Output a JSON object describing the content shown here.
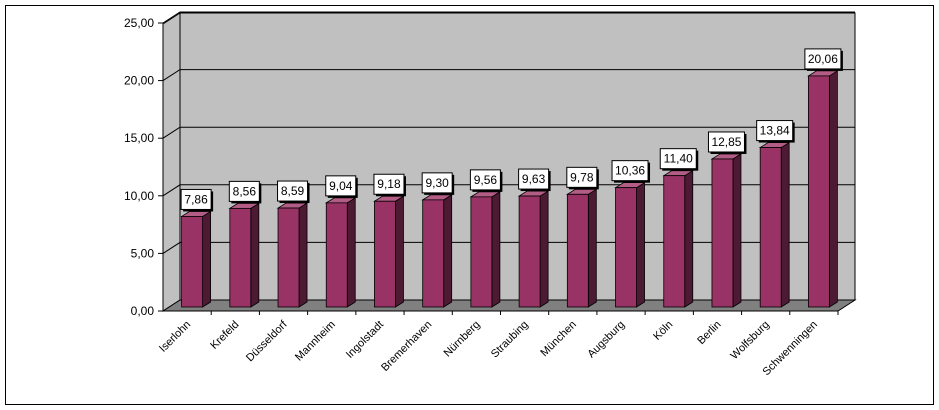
{
  "chart_data": {
    "type": "bar",
    "categories": [
      "Iserlohn",
      "Krefeld",
      "Düsseldorf",
      "Mannheim",
      "Ingolstadt",
      "Bremerhaven",
      "Nürnberg",
      "Straubing",
      "München",
      "Augsburg",
      "Köln",
      "Berlin",
      "Wolfsburg",
      "Schwenningen"
    ],
    "values": [
      7.86,
      8.56,
      8.59,
      9.04,
      9.18,
      9.3,
      9.56,
      9.63,
      9.78,
      10.36,
      11.4,
      12.85,
      13.84,
      20.06
    ],
    "data_labels": [
      "7,86",
      "8,56",
      "8,59",
      "9,04",
      "9,18",
      "9,30",
      "9,56",
      "9,63",
      "9,78",
      "10,36",
      "11,40",
      "12,85",
      "13,84",
      "20,06"
    ],
    "y_ticks": [
      "0,00",
      "5,00",
      "10,00",
      "15,00",
      "20,00",
      "25,00"
    ],
    "ylim": [
      0,
      25
    ],
    "grid": true,
    "legend": "none",
    "colors": {
      "bar_front": "#993366",
      "bar_side": "#4d1a33",
      "bar_top": "#b35c85",
      "wall": "#c0c0c0",
      "floor": "#808080"
    }
  }
}
